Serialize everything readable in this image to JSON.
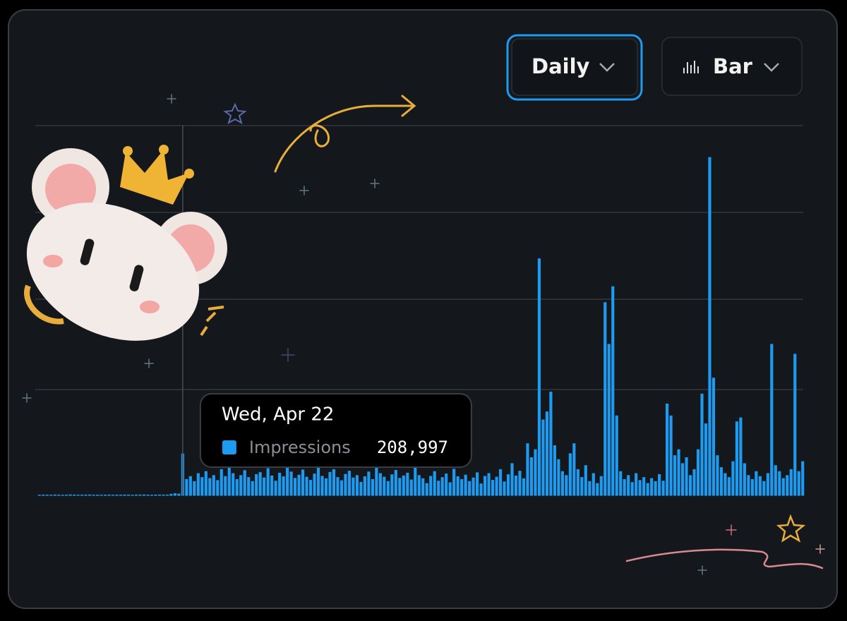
{
  "controls": {
    "interval": "Daily",
    "view": "Bar"
  },
  "chart_data": {
    "type": "bar",
    "categories": [
      null,
      null,
      null,
      null,
      null,
      null,
      null,
      null,
      null,
      null,
      null,
      null,
      null,
      null,
      null,
      null,
      null,
      null,
      null,
      null,
      null,
      null,
      null,
      null,
      null,
      null,
      null,
      null,
      null,
      null,
      null,
      null,
      null,
      null,
      null,
      null,
      null,
      "Wed, Apr 22",
      null,
      null,
      null,
      null,
      null,
      null,
      null,
      null,
      null,
      null,
      null,
      null,
      null,
      null,
      null,
      null,
      null,
      null,
      null,
      null,
      null,
      null,
      null,
      null,
      null,
      null,
      null,
      null,
      null,
      null,
      null,
      null,
      null,
      null,
      null,
      null,
      null,
      null,
      null,
      null,
      null,
      null,
      null,
      null,
      null,
      null,
      null,
      null,
      null,
      null,
      null,
      null,
      null,
      null,
      null,
      null,
      null,
      null,
      null,
      null,
      null,
      null,
      null,
      null,
      null,
      null,
      null,
      null,
      null,
      null,
      null,
      null,
      null,
      null,
      null,
      null,
      null,
      null,
      null,
      null,
      null,
      null,
      null,
      null,
      null,
      null,
      null,
      null,
      null,
      null,
      null,
      null,
      null,
      null,
      null,
      null,
      null,
      null,
      null,
      null,
      null,
      null,
      null,
      null,
      null,
      null,
      null,
      null,
      null,
      null,
      null,
      null,
      null,
      null,
      null,
      null,
      null,
      null,
      null,
      null,
      null,
      null,
      null,
      null,
      null,
      null,
      null,
      null,
      null,
      null,
      null,
      null,
      null,
      null,
      null,
      null,
      null,
      null,
      null,
      null,
      null,
      null,
      null,
      null,
      null,
      null,
      null,
      null,
      null,
      null,
      null,
      null,
      null,
      null,
      null,
      null,
      null,
      null,
      null,
      null
    ],
    "series": [
      {
        "name": "Impressions",
        "color": "#1d9bf0",
        "values": [
          1500,
          2000,
          1800,
          1500,
          2500,
          2000,
          1200,
          1800,
          3000,
          2200,
          1500,
          2000,
          1800,
          2500,
          1600,
          2000,
          1400,
          1800,
          2200,
          1500,
          2000,
          1700,
          2400,
          1900,
          1500,
          2100,
          1800,
          2600,
          2000,
          1600,
          2300,
          1900,
          2200,
          2000,
          6000,
          9000,
          7000,
          208997,
          80000,
          95000,
          70000,
          110000,
          90000,
          120000,
          85000,
          100000,
          75000,
          130000,
          95000,
          140000,
          110000,
          80000,
          100000,
          125000,
          90000,
          70000,
          105000,
          115000,
          88000,
          135000,
          98000,
          72000,
          112000,
          94000,
          150000,
          118000,
          86000,
          102000,
          128000,
          92000,
          76000,
          108000,
          140000,
          96000,
          84000,
          116000,
          130000,
          90000,
          74000,
          106000,
          122000,
          88000,
          100000,
          66000,
          94000,
          118000,
          80000,
          138000,
          110000,
          92000,
          70000,
          104000,
          126000,
          86000,
          98000,
          112000,
          78000,
          145000,
          100000,
          84000,
          60000,
          96000,
          120000,
          72000,
          90000,
          108000,
          64000,
          132000,
          94000,
          80000,
          102000,
          70000,
          88000,
          114000,
          58000,
          96000,
          110000,
          76000,
          92000,
          130000,
          68000,
          104000,
          160000,
          98000,
          122000,
          84000,
          260000,
          190000,
          230000,
          1190000,
          380000,
          420000,
          520000,
          250000,
          180000,
          120000,
          100000,
          210000,
          260000,
          130000,
          90000,
          150000,
          70000,
          110000,
          60000,
          95000,
          970000,
          760000,
          1050000,
          400000,
          120000,
          80000,
          100000,
          65000,
          110000,
          75000,
          90000,
          60000,
          85000,
          70000,
          105000,
          72000,
          460000,
          400000,
          200000,
          230000,
          160000,
          190000,
          100000,
          130000,
          230000,
          510000,
          360000,
          1700000,
          590000,
          200000,
          140000,
          110000,
          90000,
          170000,
          370000,
          390000,
          160000,
          100000,
          80000,
          120000,
          95000,
          70000,
          110000,
          760000,
          150000,
          120000,
          85000,
          100000,
          130000,
          710000,
          120000,
          170000
        ],
        "value_labels": [
          null,
          null,
          null,
          null,
          null,
          null,
          null,
          null,
          null,
          null,
          null,
          null,
          null,
          null,
          null,
          null,
          null,
          null,
          null,
          null,
          null,
          null,
          null,
          null,
          null,
          null,
          null,
          null,
          null,
          null,
          null,
          null,
          null,
          null,
          null,
          null,
          null,
          "208,997",
          null,
          null,
          null,
          null,
          null,
          null,
          null,
          null,
          null,
          null,
          null,
          null,
          null,
          null,
          null,
          null,
          null,
          null,
          null,
          null,
          null,
          null,
          null,
          null,
          null,
          null,
          null,
          null,
          null,
          null,
          null,
          null,
          null,
          null,
          null,
          null,
          null,
          null,
          null,
          null,
          null,
          null,
          null,
          null,
          null,
          null,
          null,
          null,
          null,
          null,
          null,
          null,
          null,
          null,
          null,
          null,
          null,
          null,
          null,
          null,
          null,
          null,
          null,
          null,
          null,
          null,
          null,
          null,
          null,
          null,
          null,
          null,
          null,
          null,
          null,
          null,
          null,
          null,
          null,
          null,
          null,
          null,
          null,
          null,
          null,
          null,
          null,
          null,
          null,
          null,
          null,
          null,
          null,
          null,
          null,
          null,
          null,
          null,
          null,
          null,
          null,
          null,
          null,
          null,
          null,
          null,
          null,
          null,
          null,
          null,
          null,
          null,
          null,
          null,
          null,
          null,
          null,
          null,
          null,
          null,
          null,
          null,
          null,
          null,
          null,
          null,
          null,
          null,
          null,
          null,
          null,
          null,
          null,
          null,
          null,
          null,
          null,
          null,
          null,
          null,
          null,
          null,
          null,
          null,
          null,
          null,
          null,
          null,
          null,
          null,
          null,
          null,
          null,
          null,
          null,
          null,
          null,
          null,
          null,
          null
        ]
      }
    ],
    "ylim": [
      0,
      1860000
    ]
  }
}
